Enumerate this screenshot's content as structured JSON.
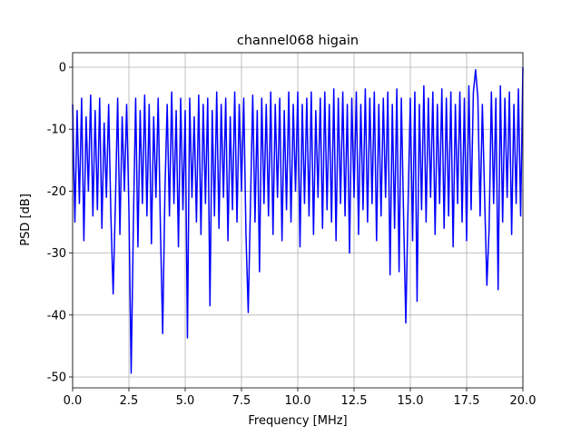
{
  "chart_data": {
    "type": "line",
    "title": "channel068 higain",
    "x_label": "Frequency [MHz]",
    "y_label": "PSD [dB]",
    "x": [
      0,
      0.1,
      0.2,
      0.3,
      0.4,
      0.5,
      0.6,
      0.7,
      0.8,
      0.9,
      1,
      1.1,
      1.2,
      1.3,
      1.4,
      1.5,
      1.6,
      1.7,
      1.8,
      1.9,
      2,
      2.1,
      2.2,
      2.3,
      2.4,
      2.5,
      2.6,
      2.7,
      2.8,
      2.9,
      3,
      3.1,
      3.2,
      3.3,
      3.4,
      3.5,
      3.6,
      3.7,
      3.8,
      3.9,
      4,
      4.1,
      4.2,
      4.3,
      4.4,
      4.5,
      4.6,
      4.7,
      4.8,
      4.9,
      5,
      5.1,
      5.2,
      5.3,
      5.4,
      5.5,
      5.6,
      5.7,
      5.8,
      5.9,
      6,
      6.1,
      6.2,
      6.3,
      6.4,
      6.5,
      6.6,
      6.7,
      6.8,
      6.9,
      7,
      7.1,
      7.2,
      7.3,
      7.4,
      7.5,
      7.6,
      7.7,
      7.8,
      7.9,
      8,
      8.1,
      8.2,
      8.3,
      8.4,
      8.5,
      8.6,
      8.7,
      8.8,
      8.9,
      9,
      9.1,
      9.2,
      9.3,
      9.4,
      9.5,
      9.6,
      9.7,
      9.8,
      9.9,
      10,
      10.1,
      10.2,
      10.3,
      10.4,
      10.5,
      10.6,
      10.7,
      10.8,
      10.9,
      11,
      11.1,
      11.2,
      11.3,
      11.4,
      11.5,
      11.6,
      11.7,
      11.8,
      11.9,
      12,
      12.1,
      12.2,
      12.3,
      12.4,
      12.5,
      12.6,
      12.7,
      12.8,
      12.9,
      13,
      13.1,
      13.2,
      13.3,
      13.4,
      13.5,
      13.6,
      13.7,
      13.8,
      13.9,
      14,
      14.1,
      14.2,
      14.3,
      14.4,
      14.5,
      14.6,
      14.7,
      14.8,
      14.9,
      15,
      15.1,
      15.2,
      15.3,
      15.4,
      15.5,
      15.6,
      15.7,
      15.8,
      15.9,
      16,
      16.1,
      16.2,
      16.3,
      16.4,
      16.5,
      16.6,
      16.7,
      16.8,
      16.9,
      17,
      17.1,
      17.2,
      17.3,
      17.4,
      17.5,
      17.6,
      17.7,
      17.8,
      17.9,
      18,
      18.1,
      18.2,
      18.3,
      18.4,
      18.5,
      18.6,
      18.7,
      18.8,
      18.9,
      19,
      19.1,
      19.2,
      19.3,
      19.4,
      19.5,
      19.6,
      19.7,
      19.8,
      19.9,
      20
    ],
    "values": [
      -6,
      -25,
      -7,
      -22,
      -5,
      -28,
      -8,
      -20,
      -4.5,
      -24,
      -7,
      -23,
      -5,
      -26,
      -9,
      -21,
      -6,
      -24,
      -36.6,
      -22,
      -5,
      -27,
      -8,
      -20,
      -6,
      -23,
      -49.4,
      -25,
      -5,
      -29,
      -7,
      -22,
      -4.5,
      -24,
      -6,
      -28.5,
      -8,
      -21,
      -5,
      -26,
      -43,
      -20,
      -6,
      -24,
      -4,
      -22,
      -7,
      -29,
      -5,
      -23,
      -7,
      -43.7,
      -5,
      -21,
      -8,
      -25,
      -4.5,
      -27,
      -6,
      -22,
      -5,
      -38.5,
      -7,
      -24,
      -4,
      -26,
      -6,
      -21,
      -5,
      -28,
      -8,
      -23,
      -4,
      -25,
      -6,
      -20,
      -5,
      -27,
      -39.6,
      -22,
      -4.5,
      -25,
      -7,
      -33,
      -5,
      -22,
      -6,
      -24,
      -4,
      -27,
      -6,
      -21,
      -5,
      -28,
      -7,
      -23,
      -4,
      -25,
      -6,
      -20,
      -4,
      -29,
      -6,
      -22,
      -5,
      -24,
      -4,
      -27,
      -7,
      -21,
      -5,
      -26,
      -4,
      -23,
      -6,
      -25,
      -3.5,
      -28,
      -5,
      -22,
      -4,
      -24,
      -6,
      -30,
      -5,
      -21,
      -4,
      -27,
      -6,
      -23,
      -3.5,
      -25,
      -5,
      -22,
      -4,
      -28,
      -6,
      -24,
      -5,
      -21,
      -4,
      -33.5,
      -6,
      -26,
      -3.5,
      -33,
      -5,
      -24,
      -41.3,
      -22,
      -5,
      -28,
      -4,
      -37.8,
      -6,
      -23,
      -3,
      -25,
      -5,
      -21,
      -4,
      -27,
      -6,
      -22,
      -3.5,
      -26,
      -5,
      -24,
      -4,
      -29,
      -6,
      -22,
      -4,
      -25,
      -5,
      -28,
      -3,
      -23,
      -4,
      -0.4,
      -5,
      -24,
      -6,
      -21,
      -35.2,
      -26,
      -4,
      -22,
      -5,
      -35.9,
      -3,
      -25,
      -5,
      -21,
      -4,
      -27,
      -6,
      -22,
      -3.5,
      -24,
      0
    ],
    "color": "#0000ff",
    "xlim": [
      0,
      20
    ],
    "xticks": [
      {
        "value": 0,
        "label": "0.0"
      },
      2.5,
      {
        "value": 5,
        "label": "5.0"
      },
      7.5,
      {
        "value": 10,
        "label": "10.0"
      },
      12.5,
      {
        "value": 15,
        "label": "15.0"
      },
      17.5,
      {
        "value": 20,
        "label": "20.0"
      }
    ],
    "ylim": [
      -51.76,
      2.35
    ],
    "yticks": [
      -50,
      -40,
      -30,
      -20,
      -10,
      0
    ],
    "grid": true
  }
}
